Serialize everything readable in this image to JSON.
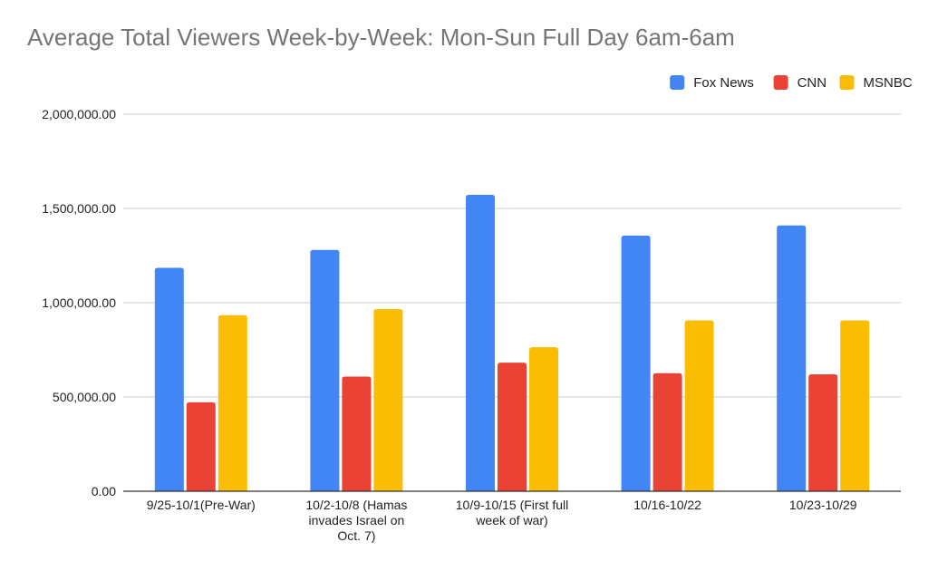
{
  "chart_data": {
    "type": "bar",
    "title": "Average Total Viewers Week-by-Week: Mon-Sun Full Day 6am-6am",
    "xlabel": "",
    "ylabel": "",
    "categories": [
      [
        "9/25-10/1(Pre-War)"
      ],
      [
        "10/2-10/8 (Hamas",
        "invades Israel on",
        "Oct. 7)"
      ],
      [
        "10/9-10/15 (First full",
        "week of war)"
      ],
      [
        "10/16-10/22"
      ],
      [
        "10/23-10/29"
      ]
    ],
    "series": [
      {
        "name": "Fox News",
        "color": "#4285F4",
        "values": [
          1185000,
          1280000,
          1572000,
          1356000,
          1410000
        ]
      },
      {
        "name": "CNN",
        "color": "#EA4335",
        "values": [
          472000,
          608000,
          682000,
          626000,
          620000
        ]
      },
      {
        "name": "MSNBC",
        "color": "#FBBC04",
        "values": [
          934000,
          966000,
          764000,
          906000,
          906000
        ]
      }
    ],
    "ylim": [
      0,
      2000000
    ],
    "yticks": [
      0,
      500000,
      1000000,
      1500000,
      2000000
    ],
    "ytick_labels": [
      "0.00",
      "500,000.00",
      "1,000,000.00",
      "1,500,000.00",
      "2,000,000.00"
    ],
    "grid": true,
    "legend_position": "top-right"
  }
}
